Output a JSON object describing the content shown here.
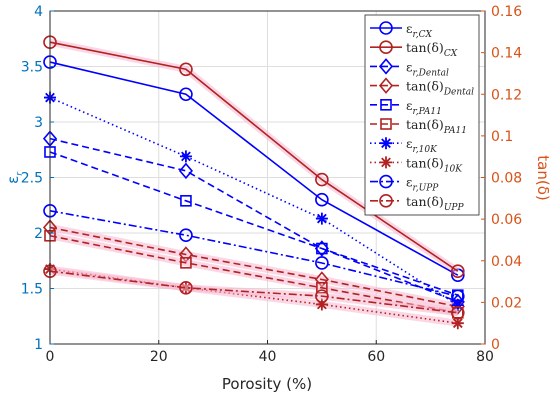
{
  "chart_data": {
    "type": "line",
    "xlabel": "Porosity (%)",
    "ylabel_left": "ε_r",
    "ylabel_right": "tan(δ)",
    "x": [
      0,
      25,
      50,
      75
    ],
    "xlim": [
      0,
      80
    ],
    "ylim_left": [
      1,
      4
    ],
    "ylim_right": [
      0,
      0.16
    ],
    "xticks": [
      "0",
      "20",
      "40",
      "60",
      "80"
    ],
    "yticks_left": [
      "1",
      "1.5",
      "2",
      "2.5",
      "3",
      "3.5",
      "4"
    ],
    "yticks_right": [
      "0",
      "0.02",
      "0.04",
      "0.06",
      "0.08",
      "0.1",
      "0.12",
      "0.14",
      "0.16"
    ],
    "grid": true,
    "legend_position": "top-right",
    "colors": {
      "blue": "#0000ff",
      "red": "#b22222",
      "left_axis": "#0072bd",
      "right_axis": "#d95319"
    },
    "series": [
      {
        "label_main": "ε",
        "label_sub": "r,CX",
        "axis": "left",
        "color": "#0000ff",
        "marker": "circle",
        "dash": "solid",
        "values": [
          3.54,
          3.25,
          2.3,
          1.62
        ]
      },
      {
        "label_main": "tan(δ)",
        "label_sub": "CX",
        "axis": "right",
        "color": "#b22222",
        "marker": "circle",
        "dash": "solid",
        "values": [
          0.145,
          0.132,
          0.079,
          0.035
        ]
      },
      {
        "label_main": "ε",
        "label_sub": "r,Dental",
        "axis": "left",
        "color": "#0000ff",
        "marker": "diamond",
        "dash": "dashed",
        "values": [
          2.85,
          2.56,
          1.86,
          1.38
        ]
      },
      {
        "label_main": "tan(δ)",
        "label_sub": "Dental",
        "axis": "right",
        "color": "#b22222",
        "marker": "diamond",
        "dash": "dashed",
        "values": [
          0.056,
          0.043,
          0.031,
          0.018
        ]
      },
      {
        "label_main": "ε",
        "label_sub": "r,PA11",
        "axis": "left",
        "color": "#0000ff",
        "marker": "square",
        "dash": "dashed",
        "values": [
          2.73,
          2.29,
          1.86,
          1.44
        ]
      },
      {
        "label_main": "tan(δ)",
        "label_sub": "PA11",
        "axis": "right",
        "color": "#b22222",
        "marker": "square",
        "dash": "dashed",
        "values": [
          0.052,
          0.039,
          0.027,
          0.015
        ]
      },
      {
        "label_main": "ε",
        "label_sub": "r,10K",
        "axis": "left",
        "color": "#0000ff",
        "marker": "star",
        "dash": "dotted",
        "values": [
          3.22,
          2.69,
          2.13,
          1.35
        ]
      },
      {
        "label_main": "tan(δ)",
        "label_sub": "10K",
        "axis": "right",
        "color": "#b22222",
        "marker": "star",
        "dash": "dotted",
        "values": [
          0.036,
          0.027,
          0.019,
          0.01
        ]
      },
      {
        "label_main": "ε",
        "label_sub": "r,UPP",
        "axis": "left",
        "color": "#0000ff",
        "marker": "circle",
        "dash": "dashdot",
        "values": [
          2.2,
          1.98,
          1.73,
          1.43
        ]
      },
      {
        "label_main": "tan(δ)",
        "label_sub": "UPP",
        "axis": "right",
        "color": "#b22222",
        "marker": "circle",
        "dash": "dashdot",
        "values": [
          0.035,
          0.027,
          0.023,
          0.015
        ]
      }
    ]
  }
}
